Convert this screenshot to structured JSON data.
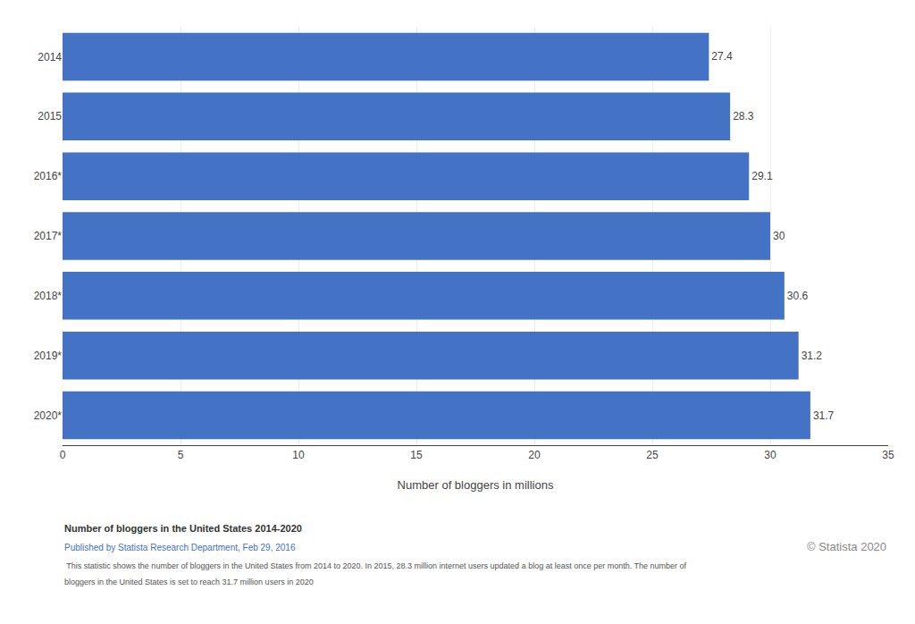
{
  "chart_data": {
    "type": "bar",
    "orientation": "horizontal",
    "categories": [
      "2014",
      "2015",
      "2016*",
      "2017*",
      "2018*",
      "2019*",
      "2020*"
    ],
    "values": [
      27.4,
      28.3,
      29.1,
      30.0,
      30.6,
      31.2,
      31.7
    ],
    "color": "#4472C4",
    "data_labels": true,
    "xlabel": "Number of bloggers in millions",
    "xlim": [
      0,
      35
    ],
    "xticks": [
      0,
      5,
      10,
      15,
      20,
      25,
      30,
      35
    ],
    "grid": true,
    "annotations": [
      "Number of bloggers in the United States 2014-2020",
      "Published by Statista Research Department, Feb 29, 2016",
      " This statistic shows the number of bloggers in the United States from 2014 to 2020. In 2015, 28.3 million internet users updated a blog at least once per month. The number of",
      "bloggers in the United States is set to reach 31.7 million users in 2020",
      "© Statista 2020"
    ]
  }
}
